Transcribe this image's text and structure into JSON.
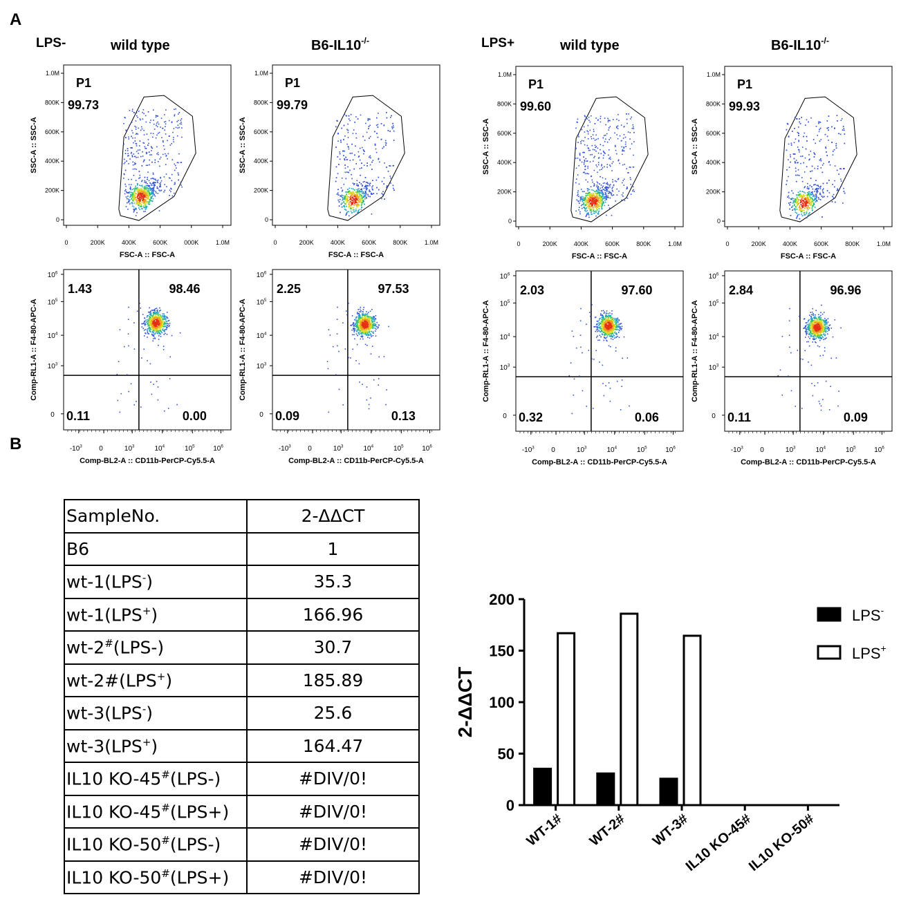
{
  "panel_labels": {
    "a": "A",
    "b": "B"
  },
  "figure_a": {
    "groups": [
      {
        "label": "LPS-",
        "panels": [
          {
            "title": "wild type",
            "title_sup": "",
            "p1_label": "P1",
            "p1_value": "99.73",
            "q_ul": "1.43",
            "q_ur": "98.46",
            "q_ll": "0.11",
            "q_lr": "0.00"
          },
          {
            "title": "B6-IL10",
            "title_sup": "-/-",
            "p1_label": "P1",
            "p1_value": "99.79",
            "q_ul": "2.25",
            "q_ur": "97.53",
            "q_ll": "0.09",
            "q_lr": "0.13"
          }
        ]
      },
      {
        "label": "LPS+",
        "panels": [
          {
            "title": "wild type",
            "title_sup": "",
            "p1_label": "P1",
            "p1_value": "99.60",
            "q_ul": "2.03",
            "q_ur": "97.60",
            "q_ll": "0.32",
            "q_lr": "0.06"
          },
          {
            "title": "B6-IL10",
            "title_sup": "-/-",
            "p1_label": "P1",
            "p1_value": "99.93",
            "q_ul": "2.84",
            "q_ur": "96.96",
            "q_ll": "0.11",
            "q_lr": "0.09"
          }
        ]
      }
    ],
    "scatter_axes": {
      "y_label": "SSC-A :: SSC-A",
      "y_ticks": [
        "0",
        "200K",
        "400K",
        "600K",
        "800K",
        "1.0M"
      ],
      "x_label": "FSC-A :: FSC-A",
      "x_ticks_variants": [
        [
          "0",
          "200K",
          "400K",
          "600K",
          "000K",
          "1.0M"
        ],
        [
          "0",
          "200K",
          "400K",
          "600K",
          "800K",
          "1.0M"
        ],
        [
          "0",
          "200K",
          "400K",
          "600K",
          "800K",
          "1.0M"
        ],
        [
          "0",
          "200K",
          "400K",
          "600K",
          "800K",
          "1.0M"
        ]
      ]
    },
    "quad_axes": {
      "y_label": "Comp-RL1-A :: F4-80-APC-A",
      "y_ticks": [
        "0",
        "10",
        "10",
        "10",
        "10"
      ],
      "y_tick_exps": [
        "",
        "3",
        "4",
        "5",
        "6"
      ],
      "x_label": "Comp-BL2-A :: CD11b-PerCP-Cy5.5-A",
      "x_ticks": [
        "-10",
        "0",
        "10",
        "10",
        "10",
        "10"
      ],
      "x_tick_exps": [
        "3",
        "",
        "3",
        "4",
        "5",
        "6"
      ]
    }
  },
  "table": {
    "header": {
      "col1": "SampleNo.",
      "col2": "2-ΔΔCT"
    },
    "rows": [
      {
        "name": "B6",
        "sup": "",
        "suffix": "",
        "value": "1"
      },
      {
        "name": "wt-1(LPS",
        "sup": "-",
        "suffix": ")",
        "value": "35.3"
      },
      {
        "name": "wt-1(LPS",
        "sup": "+",
        "suffix": ")",
        "value": "166.96"
      },
      {
        "name": "wt-2",
        "sup": "#",
        "suffix": "(LPS-)",
        "value": "30.7"
      },
      {
        "name": "wt-2#(LPS",
        "sup": "+",
        "suffix": ")",
        "value": "185.89"
      },
      {
        "name": "wt-3(LPS",
        "sup": "-",
        "suffix": ")",
        "value": "25.6"
      },
      {
        "name": "wt-3(LPS",
        "sup": "+",
        "suffix": ")",
        "value": "164.47"
      },
      {
        "name": "IL10 KO-45",
        "sup": "#",
        "suffix": "(LPS-)",
        "value": "#DIV/0!"
      },
      {
        "name": "IL10 KO-45",
        "sup": "#",
        "suffix": "(LPS+)",
        "value": "#DIV/0!"
      },
      {
        "name": "IL10 KO-50",
        "sup": "#",
        "suffix": "(LPS-)",
        "value": "#DIV/0!"
      },
      {
        "name": "IL10 KO-50",
        "sup": "#",
        "suffix": "(LPS+)",
        "value": "#DIV/0!"
      }
    ]
  },
  "chart_data": {
    "type": "bar",
    "categories": [
      "WT-1#",
      "WT-2#",
      "WT-3#",
      "IL10 KO-45#",
      "IL10 KO-50#"
    ],
    "series": [
      {
        "name": "LPS",
        "name_sup": "-",
        "fill": "#000000",
        "values": [
          35.3,
          30.7,
          25.6,
          0,
          0
        ]
      },
      {
        "name": "LPS",
        "name_sup": "+",
        "fill": "#ffffff",
        "values": [
          166.96,
          185.89,
          164.47,
          0,
          0
        ]
      }
    ],
    "ylabel": "2-ΔΔCT",
    "ylim": [
      0,
      200
    ],
    "yticks": [
      0,
      50,
      100,
      150,
      200
    ],
    "xlabel": "",
    "title": ""
  }
}
